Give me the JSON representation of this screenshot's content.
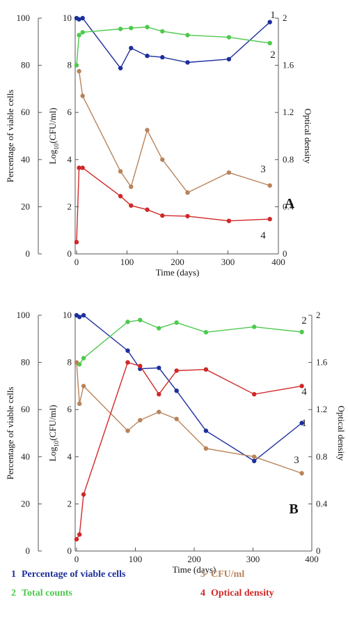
{
  "legend": [
    {
      "num": "1",
      "label": "Percentage of viable cells",
      "color": "#1d2f9c"
    },
    {
      "num": "2",
      "label": "Total counts",
      "color": "#4ec94e"
    },
    {
      "num": "3",
      "label": "CFU/ml",
      "color": "#b8835a"
    },
    {
      "num": "4",
      "label": "Optical density",
      "color": "#d02828"
    }
  ],
  "chart_data": [
    {
      "type": "line",
      "panel": "A",
      "xlabel": "Time (days)",
      "ylabel_outer": "Percentage of viable cells",
      "ylabel_inner": "Log10(CFU/ml)",
      "ylabel_right": "Optical density",
      "xlim": [
        0,
        400
      ],
      "xticks": [
        0,
        100,
        200,
        300,
        400
      ],
      "ylim_outer": [
        0,
        100
      ],
      "yticks_outer": [
        0,
        20,
        40,
        60,
        80,
        100
      ],
      "ylim_inner": [
        0,
        10
      ],
      "yticks_inner": [
        0,
        2,
        4,
        6,
        8,
        10
      ],
      "ylim_right": [
        0,
        2
      ],
      "yticks_right": [
        "0",
        "0.4",
        "0.8",
        "1.2",
        "1.6",
        "2"
      ],
      "grid": false,
      "series": [
        {
          "num": "1",
          "axis": "outer",
          "color": "#1d2f9c",
          "x": [
            0,
            5,
            12,
            87,
            108,
            140,
            170,
            220,
            302,
            383
          ],
          "y": [
            100,
            99.5,
            100,
            78.8,
            87.3,
            84,
            83.4,
            81.2,
            82.6,
            98.3
          ]
        },
        {
          "num": "2",
          "axis": "outer",
          "color": "#4ec94e",
          "x": [
            0,
            5,
            12,
            87,
            108,
            140,
            170,
            220,
            302,
            383
          ],
          "y": [
            80,
            92.8,
            94,
            95.4,
            95.8,
            96.2,
            94.4,
            92.8,
            91.9,
            89.4
          ]
        },
        {
          "num": "3",
          "axis": "inner",
          "color": "#b8835a",
          "x": [
            5,
            12,
            87,
            108,
            140,
            170,
            220,
            302,
            383
          ],
          "y": [
            7.75,
            6.7,
            3.5,
            2.85,
            5.25,
            4.0,
            2.6,
            3.45,
            2.9
          ]
        },
        {
          "num": "4",
          "axis": "right",
          "color": "#d02828",
          "x": [
            0,
            5,
            12,
            87,
            108,
            140,
            170,
            220,
            302,
            383
          ],
          "y": [
            0.1,
            0.73,
            0.73,
            0.49,
            0.41,
            0.375,
            0.325,
            0.32,
            0.28,
            0.295
          ]
        }
      ]
    },
    {
      "type": "line",
      "panel": "B",
      "xlabel": "Time (days)",
      "ylabel_outer": "Percentage of viable cells",
      "ylabel_inner": "Log10(CFU/ml)",
      "ylabel_right": "Optical density",
      "xlim": [
        0,
        400
      ],
      "xticks": [
        0,
        100,
        200,
        300,
        400
      ],
      "ylim_outer": [
        0,
        100
      ],
      "yticks_outer": [
        0,
        20,
        40,
        60,
        80,
        100
      ],
      "ylim_inner": [
        0,
        10
      ],
      "yticks_inner": [
        0,
        2,
        4,
        6,
        8,
        10
      ],
      "ylim_right": [
        0,
        2
      ],
      "yticks_right": [
        "0",
        "0.4",
        "0.8",
        "1.2",
        "1.6",
        "2"
      ],
      "grid": false,
      "series": [
        {
          "num": "1",
          "axis": "outer",
          "color": "#1d2f9c",
          "x": [
            0,
            5,
            12,
            87,
            108,
            140,
            170,
            220,
            302,
            383
          ],
          "y": [
            100,
            99.3,
            100,
            85,
            77.3,
            77.7,
            68,
            51,
            38.2,
            54.3
          ]
        },
        {
          "num": "2",
          "axis": "outer",
          "color": "#4ec94e",
          "x": [
            0,
            5,
            12,
            87,
            108,
            140,
            170,
            220,
            302,
            383
          ],
          "y": [
            80,
            79.2,
            81.8,
            97.2,
            98,
            94.5,
            96.9,
            92.8,
            95.1,
            92.9
          ]
        },
        {
          "num": "3",
          "axis": "inner",
          "color": "#b8835a",
          "x": [
            0,
            5,
            12,
            87,
            108,
            140,
            170,
            220,
            302,
            383
          ],
          "y": [
            8.0,
            6.25,
            7.0,
            5.1,
            5.55,
            5.9,
            5.6,
            4.35,
            4.0,
            3.3
          ]
        },
        {
          "num": "4",
          "axis": "right",
          "color": "#d02828",
          "x": [
            0,
            5,
            12,
            87,
            108,
            140,
            170,
            220,
            302,
            383
          ],
          "y": [
            0.1,
            0.14,
            0.48,
            1.6,
            1.57,
            1.33,
            1.53,
            1.54,
            1.33,
            1.4
          ]
        }
      ]
    }
  ]
}
